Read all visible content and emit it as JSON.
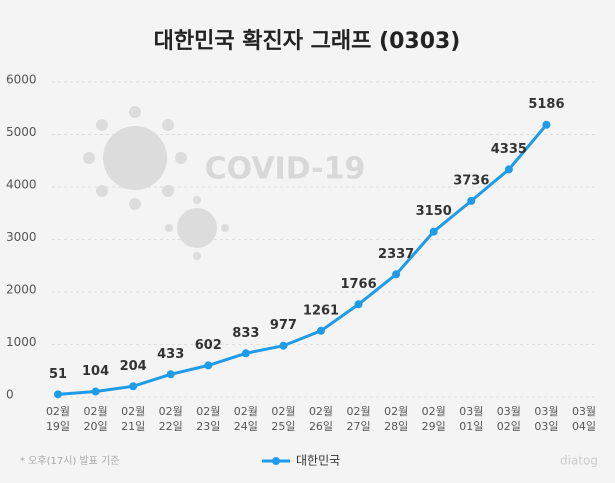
{
  "chart_data": {
    "type": "line",
    "title": "대한민국 확진자 그래프 (0303)",
    "categories": [
      "02월 19일",
      "02월 20일",
      "02월 21일",
      "02월 22일",
      "02월 23일",
      "02월 24일",
      "02월 25일",
      "02월 26일",
      "02월 27일",
      "02월 28일",
      "02월 29일",
      "03월 01일",
      "03월 02일",
      "03월 03일",
      "03월 04일"
    ],
    "series": [
      {
        "name": "대한민국",
        "color": "#1e9be9",
        "values": [
          51,
          104,
          204,
          433,
          602,
          833,
          977,
          1261,
          1766,
          2337,
          3150,
          3736,
          4335,
          5186,
          null
        ]
      }
    ],
    "ylim": [
      0,
      6000
    ],
    "yticks": [
      0,
      1000,
      2000,
      3000,
      4000,
      5000,
      6000
    ],
    "grid": true,
    "legend": "bottom",
    "footnote": "* 오후(17시) 발표 기준",
    "watermark": "COVID-19",
    "logo": "diatog"
  }
}
